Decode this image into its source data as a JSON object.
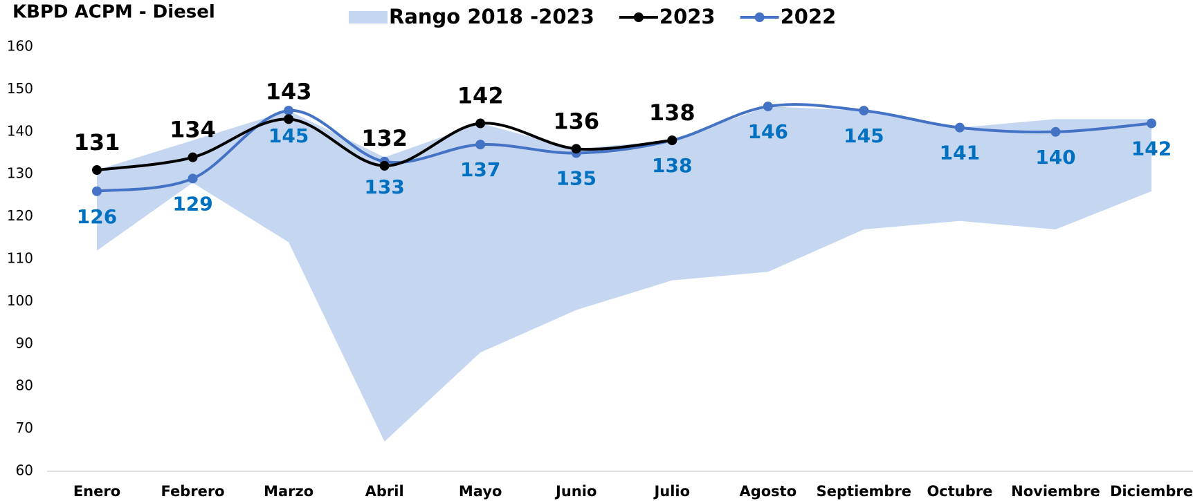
{
  "chart_data": {
    "type": "line",
    "title": "KBPD ACPM - Diesel",
    "categories": [
      "Enero",
      "Febrero",
      "Marzo",
      "Abril",
      "Mayo",
      "Junio",
      "Julio",
      "Agosto",
      "Septiembre",
      "Octubre",
      "Noviembre",
      "Diciembre"
    ],
    "series": [
      {
        "name": "Rango 2018 -2023",
        "color": "#c5d7f0",
        "kind": "band",
        "lower": [
          112,
          128,
          114,
          67,
          88,
          98,
          105,
          107,
          117,
          119,
          117,
          126
        ],
        "upper": [
          131,
          138,
          145,
          134,
          142,
          136,
          138,
          146,
          145,
          141,
          143,
          143
        ]
      },
      {
        "name": "2023",
        "color": "#000000",
        "label_color": "#000000",
        "label_position": "above",
        "values": [
          131,
          134,
          143,
          132,
          142,
          136,
          138,
          null,
          null,
          null,
          null,
          null
        ]
      },
      {
        "name": "2022",
        "color": "#4472c4",
        "label_color": "#0070c0",
        "label_position": "below",
        "values": [
          126,
          129,
          145,
          133,
          137,
          135,
          138,
          146,
          145,
          141,
          140,
          142
        ]
      }
    ],
    "ylim": [
      60,
      160
    ],
    "yticks": [
      60,
      70,
      80,
      90,
      100,
      110,
      120,
      130,
      140,
      150,
      160
    ],
    "grid": false,
    "legend": "top"
  }
}
